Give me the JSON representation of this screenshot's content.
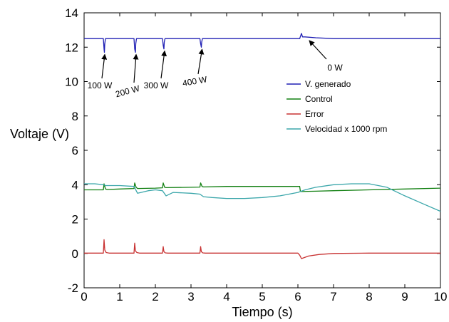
{
  "chart_data": {
    "type": "line",
    "xlabel": "Tiempo (s)",
    "ylabel": "Voltaje (V)",
    "xlim": [
      0,
      10
    ],
    "ylim": [
      -2,
      14
    ],
    "xticks": [
      0,
      1,
      2,
      3,
      4,
      5,
      6,
      7,
      8,
      9,
      10
    ],
    "yticks": [
      -2,
      0,
      2,
      4,
      6,
      8,
      10,
      12,
      14
    ],
    "grid": false,
    "legend_position": "right",
    "series": [
      {
        "name": "V. generado",
        "color": "#1f1fb4",
        "x": [
          0,
          0.54,
          0.56,
          0.57,
          0.58,
          0.6,
          0.62,
          1.4,
          1.42,
          1.44,
          1.45,
          1.47,
          1.5,
          2.2,
          2.22,
          2.24,
          2.25,
          2.27,
          2.3,
          3.25,
          3.27,
          3.29,
          3.3,
          3.32,
          3.35,
          6.05,
          6.1,
          6.13,
          6.2,
          6.5,
          7.0,
          8.0,
          10.0
        ],
        "values": [
          12.5,
          12.5,
          11.9,
          11.7,
          12.2,
          12.5,
          12.5,
          12.5,
          11.9,
          11.7,
          12.2,
          12.5,
          12.5,
          12.5,
          12.1,
          11.9,
          12.3,
          12.5,
          12.5,
          12.5,
          12.2,
          12.0,
          12.3,
          12.5,
          12.5,
          12.5,
          12.8,
          12.6,
          12.6,
          12.55,
          12.5,
          12.5,
          12.5
        ]
      },
      {
        "name": "Control",
        "color": "#128012",
        "x": [
          0,
          0.54,
          0.56,
          0.6,
          0.65,
          1.0,
          1.4,
          1.42,
          1.46,
          1.5,
          2.0,
          2.2,
          2.22,
          2.26,
          2.3,
          3.0,
          3.25,
          3.27,
          3.31,
          3.35,
          4.0,
          5.0,
          6.0,
          6.05,
          6.07,
          6.5,
          7.0,
          8.0,
          9.0,
          10.0
        ],
        "values": [
          3.7,
          3.7,
          4.05,
          3.75,
          3.72,
          3.75,
          3.78,
          4.1,
          3.85,
          3.78,
          3.8,
          3.82,
          4.1,
          3.85,
          3.83,
          3.85,
          3.86,
          4.1,
          3.9,
          3.87,
          3.9,
          3.9,
          3.9,
          3.9,
          3.6,
          3.62,
          3.65,
          3.7,
          3.75,
          3.8
        ]
      },
      {
        "name": "Error",
        "color": "#c83232",
        "x": [
          0,
          0.54,
          0.56,
          0.58,
          0.62,
          0.7,
          1.4,
          1.42,
          1.44,
          1.48,
          1.55,
          2.2,
          2.22,
          2.24,
          2.28,
          2.35,
          3.25,
          3.27,
          3.29,
          3.33,
          3.4,
          6.0,
          6.05,
          6.1,
          6.3,
          6.6,
          7.0,
          8.0,
          10.0
        ],
        "values": [
          0.02,
          0.02,
          0.8,
          0.2,
          0.05,
          0.02,
          0.02,
          0.6,
          0.15,
          0.05,
          0.02,
          0.02,
          0.4,
          0.1,
          0.03,
          0.02,
          0.02,
          0.4,
          0.1,
          0.03,
          0.02,
          0.02,
          -0.1,
          -0.3,
          -0.15,
          -0.06,
          0.0,
          0.02,
          0.02
        ]
      },
      {
        "name": "Velocidad x 1000 rpm",
        "color": "#3aa6aa",
        "x": [
          0,
          0.3,
          0.55,
          0.6,
          0.8,
          1.0,
          1.4,
          1.5,
          1.6,
          1.8,
          2.0,
          2.2,
          2.3,
          2.5,
          3.0,
          3.25,
          3.35,
          3.6,
          4.0,
          4.5,
          5.0,
          5.5,
          6.0,
          6.2,
          6.5,
          7.0,
          7.5,
          8.0,
          8.5,
          9.0,
          9.5,
          10.0
        ],
        "values": [
          4.05,
          4.05,
          4.0,
          3.95,
          3.95,
          3.95,
          3.9,
          3.5,
          3.55,
          3.65,
          3.7,
          3.65,
          3.35,
          3.55,
          3.5,
          3.45,
          3.3,
          3.25,
          3.2,
          3.2,
          3.25,
          3.35,
          3.55,
          3.7,
          3.85,
          4.0,
          4.05,
          4.05,
          3.85,
          3.35,
          2.9,
          2.45
        ]
      }
    ],
    "annotations": [
      {
        "text": "100 W",
        "x": 0.56,
        "y": 11.7
      },
      {
        "text": "200 W",
        "x": 1.44,
        "y": 11.7
      },
      {
        "text": "300 W",
        "x": 2.24,
        "y": 11.9
      },
      {
        "text": "400 W",
        "x": 3.29,
        "y": 12.0
      },
      {
        "text": "0 W",
        "x": 6.2,
        "y": 12.55
      }
    ]
  }
}
